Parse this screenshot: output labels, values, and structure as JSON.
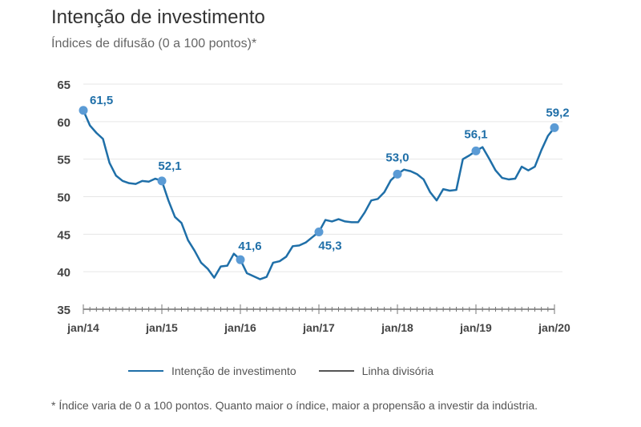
{
  "title": "Intenção de investimento",
  "subtitle": "Índices de difusão (0 a 100 pontos)*",
  "footnote": "* Índice varia de 0 a 100 pontos. Quanto maior o índice, maior a propensão a investir da indústria.",
  "colors": {
    "series": "#1f6fa8",
    "marker": "#5b9bd5",
    "label": "#1f6fa8",
    "divider": "#555555",
    "grid": "#e6e6e6"
  },
  "chart_data": {
    "type": "line",
    "title": "Intenção de investimento",
    "ylim": [
      35,
      65
    ],
    "yticks": [
      35,
      40,
      45,
      50,
      55,
      60,
      65
    ],
    "xtick_labels": [
      "jan/14",
      "jan/15",
      "jan/16",
      "jan/17",
      "jan/18",
      "jan/19",
      "jan/20"
    ],
    "x_start": "2014-01",
    "x_end": "2020-01",
    "frequency": "monthly",
    "grid": true,
    "legend": "bottom",
    "legend_entries": [
      "Intenção de investimento",
      "Linha divisória"
    ],
    "series": [
      {
        "name": "Intenção de investimento",
        "values": [
          61.5,
          59.5,
          58.5,
          57.7,
          54.5,
          52.8,
          52.1,
          51.8,
          51.7,
          52.1,
          52.0,
          52.4,
          52.1,
          49.5,
          47.3,
          46.5,
          44.2,
          42.8,
          41.2,
          40.4,
          39.2,
          40.7,
          40.8,
          42.4,
          41.6,
          39.8,
          39.4,
          39.0,
          39.3,
          41.2,
          41.4,
          42.0,
          43.4,
          43.5,
          43.9,
          44.6,
          45.3,
          46.9,
          46.7,
          47.0,
          46.7,
          46.6,
          46.6,
          47.9,
          49.5,
          49.7,
          50.6,
          52.2,
          53.0,
          53.6,
          53.4,
          53.0,
          52.3,
          50.6,
          49.5,
          51.0,
          50.8,
          50.9,
          55.0,
          55.5,
          56.1,
          56.6,
          55.1,
          53.5,
          52.5,
          52.3,
          52.4,
          54.0,
          53.5,
          54.0,
          56.2,
          58.1,
          59.2
        ]
      }
    ],
    "annotations": [
      {
        "x": "jan/14",
        "label": "61,5"
      },
      {
        "x": "jan/15",
        "label": "52,1"
      },
      {
        "x": "jan/16",
        "label": "41,6"
      },
      {
        "x": "jan/17",
        "label": "45,3"
      },
      {
        "x": "jan/18",
        "label": "53,0"
      },
      {
        "x": "jan/19",
        "label": "56,1"
      },
      {
        "x": "jan/20",
        "label": "59,2"
      }
    ]
  }
}
